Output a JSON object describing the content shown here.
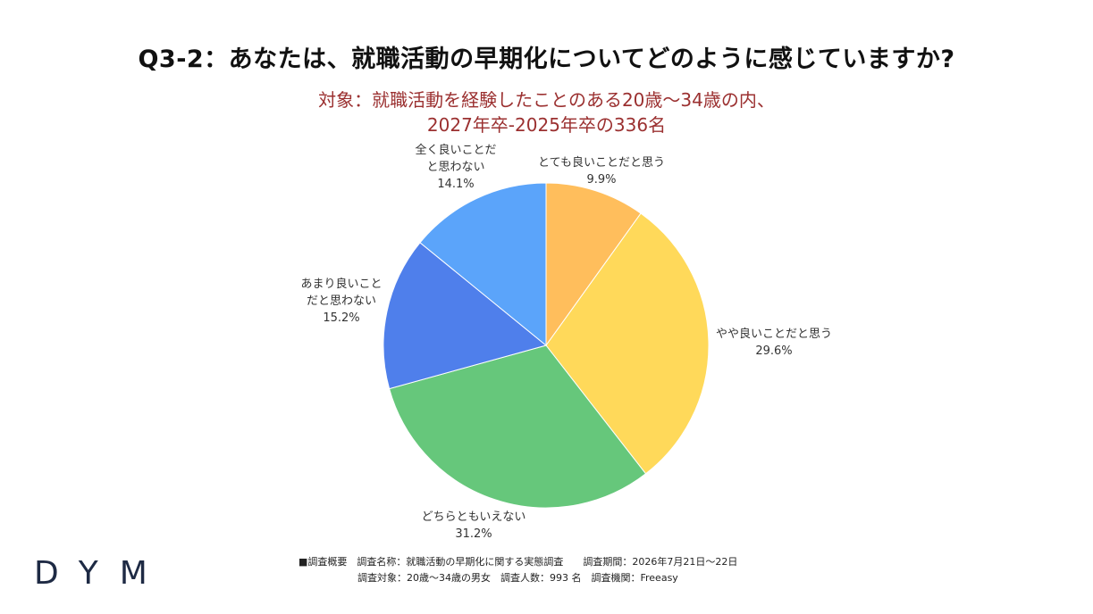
{
  "title": "Q3-2：あなたは、就職活動の早期化についてどのように感じていますか?",
  "subtitle_line1": "対象：就職活動を経験したことのある20歳～34歳の内、",
  "subtitle_line2": "2027年卒-2025年卒の336名",
  "chart_data": {
    "type": "pie",
    "title": "Q3-2：あなたは、就職活動の早期化についてどのように感じていますか?",
    "slices": [
      {
        "label_lines": [
          "とても良いことだと思う"
        ],
        "label": "とても良いことだと思う",
        "value": 9.9,
        "value_label": "9.9%",
        "color": "#FFBE5C"
      },
      {
        "label_lines": [
          "やや良いことだと思う"
        ],
        "label": "やや良いことだと思う",
        "value": 29.6,
        "value_label": "29.6%",
        "color": "#FFD95A"
      },
      {
        "label_lines": [
          "どちらともいえない"
        ],
        "label": "どちらともいえない",
        "value": 31.2,
        "value_label": "31.2%",
        "color": "#66C77B"
      },
      {
        "label_lines": [
          "あまり良いこと",
          "だと思わない"
        ],
        "label": "あまり良いことだと思わない",
        "value": 15.2,
        "value_label": "15.2%",
        "color": "#4F7FEB"
      },
      {
        "label_lines": [
          "全く良いことだ",
          "と思わない"
        ],
        "label": "全く良いことだと思わない",
        "value": 14.1,
        "value_label": "14.1%",
        "color": "#5BA4FA"
      }
    ]
  },
  "footer_line1": "■調査概要　調査名称：就職活動の早期化に関する実態調査　　調査期間：2026年7月21日～22日",
  "footer_line2": "調査対象：20歳～34歳の男女　調査人数：993 名　調査機関：Freeasy",
  "logo": "DYM"
}
